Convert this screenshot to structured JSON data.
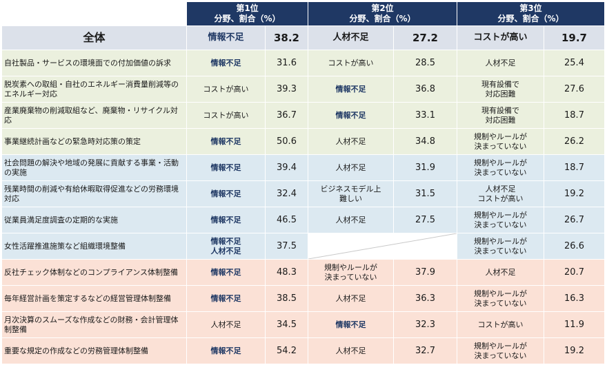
{
  "headers": [
    {
      "rank": "第1位",
      "sub": "分野、割合（%）"
    },
    {
      "rank": "第2位",
      "sub": "分野、割合（%）"
    },
    {
      "rank": "第3位",
      "sub": "分野、割合（%）"
    }
  ],
  "overall": {
    "label": "全体",
    "c1": [
      "情報不足"
    ],
    "v1": "38.2",
    "c2": [
      "人材不足"
    ],
    "v2": "27.2",
    "c3": [
      "コストが高い"
    ],
    "v3": "19.7"
  },
  "rows": [
    {
      "group": 1,
      "label": "自社製品・サービスの環境面での付加価値の訴求",
      "c1": [
        "情報不足"
      ],
      "b1": true,
      "v1": "31.6",
      "c2": [
        "コストが高い"
      ],
      "b2": false,
      "v2": "28.5",
      "c3": [
        "人材不足"
      ],
      "b3": false,
      "v3": "25.4"
    },
    {
      "group": 1,
      "label": "脱炭素への取組・自社のエネルギー消費量削減等のエネルギー対応",
      "c1": [
        "コストが高い"
      ],
      "b1": false,
      "v1": "39.3",
      "c2": [
        "情報不足"
      ],
      "b2": true,
      "v2": "36.8",
      "c3": [
        "現有設備で",
        "対応困難"
      ],
      "b3": false,
      "v3": "27.6"
    },
    {
      "group": 1,
      "label": "産業廃棄物の削減取組など、廃棄物・リサイクル対応",
      "c1": [
        "コストが高い"
      ],
      "b1": false,
      "v1": "36.7",
      "c2": [
        "情報不足"
      ],
      "b2": true,
      "v2": "33.1",
      "c3": [
        "現有設備で",
        "対応困難"
      ],
      "b3": false,
      "v3": "18.7"
    },
    {
      "group": 1,
      "label": "事業継続計画などの緊急時対応策の策定",
      "c1": [
        "情報不足"
      ],
      "b1": true,
      "v1": "50.6",
      "c2": [
        "人材不足"
      ],
      "b2": false,
      "v2": "34.8",
      "c3": [
        "規制やルールが",
        "決まっていない"
      ],
      "b3": false,
      "v3": "26.2"
    },
    {
      "group": 2,
      "label": "社会問題の解決や地域の発展に貢献する事業・活動の実施",
      "c1": [
        "情報不足"
      ],
      "b1": true,
      "v1": "39.4",
      "c2": [
        "人材不足"
      ],
      "b2": false,
      "v2": "31.9",
      "c3": [
        "規制やルールが",
        "決まっていない"
      ],
      "b3": false,
      "v3": "18.7"
    },
    {
      "group": 2,
      "label": "残業時間の削減や有給休暇取得促進などの労務環境対応",
      "c1": [
        "情報不足"
      ],
      "b1": true,
      "v1": "32.4",
      "c2": [
        "ビジネスモデル上",
        "難しい"
      ],
      "b2": false,
      "v2": "31.5",
      "c3": [
        "人材不足",
        "コストが高い"
      ],
      "b3": false,
      "v3": "19.2"
    },
    {
      "group": 2,
      "label": "従業員満足度調査の定期的な実施",
      "c1": [
        "情報不足"
      ],
      "b1": true,
      "v1": "46.5",
      "c2": [
        "人材不足"
      ],
      "b2": false,
      "v2": "27.5",
      "c3": [
        "規制やルールが",
        "決まっていない"
      ],
      "b3": false,
      "v3": "26.7"
    },
    {
      "group": 2,
      "label": "女性活躍推進施策など組織環境整備",
      "c1": [
        "情報不足",
        "人材不足"
      ],
      "b1": true,
      "v1": "37.5",
      "c2": [],
      "b2": false,
      "v2": "",
      "c3": [
        "規制やルールが",
        "決まっていない"
      ],
      "b3": false,
      "v3": "26.6"
    },
    {
      "group": 3,
      "label": "反社チェック体制などのコンプライアンス体制整備",
      "c1": [
        "情報不足"
      ],
      "b1": true,
      "v1": "48.3",
      "c2": [
        "規制やルールが",
        "決まっていない"
      ],
      "b2": false,
      "v2": "37.9",
      "c3": [
        "人材不足"
      ],
      "b3": false,
      "v3": "20.7"
    },
    {
      "group": 3,
      "label": "毎年経営計画を策定するなどの経営管理体制整備",
      "c1": [
        "情報不足"
      ],
      "b1": true,
      "v1": "38.5",
      "c2": [
        "人材不足"
      ],
      "b2": false,
      "v2": "36.3",
      "c3": [
        "規制やルールが",
        "決まっていない"
      ],
      "b3": false,
      "v3": "16.3"
    },
    {
      "group": 3,
      "label": "月次決算のスムーズな作成などの財務・会計管理体制整備",
      "c1": [
        "人材不足"
      ],
      "b1": false,
      "v1": "34.5",
      "c2": [
        "情報不足"
      ],
      "b2": true,
      "v2": "32.3",
      "c3": [
        "コストが高い"
      ],
      "b3": false,
      "v3": "11.9"
    },
    {
      "group": 3,
      "label": "重要な規定の作成などの労務管理体制整備",
      "c1": [
        "情報不足"
      ],
      "b1": true,
      "v1": "54.2",
      "c2": [
        "人材不足"
      ],
      "b2": false,
      "v2": "32.7",
      "c3": [
        "規制やルールが",
        "決まっていない"
      ],
      "b3": false,
      "v3": "19.2"
    }
  ]
}
